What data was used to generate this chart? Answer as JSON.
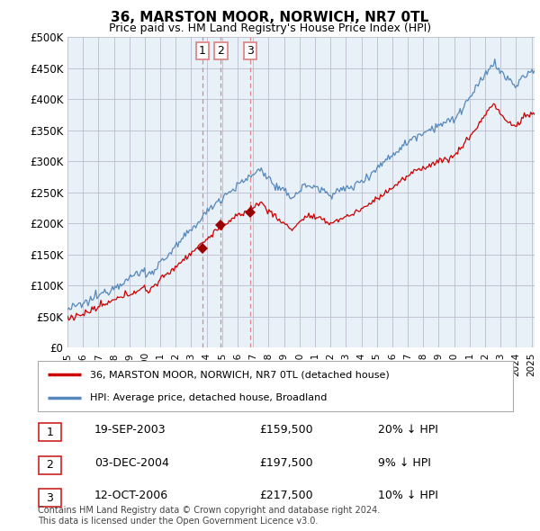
{
  "title": "36, MARSTON MOOR, NORWICH, NR7 0TL",
  "subtitle": "Price paid vs. HM Land Registry's House Price Index (HPI)",
  "ylabel_ticks": [
    "£0",
    "£50K",
    "£100K",
    "£150K",
    "£200K",
    "£250K",
    "£300K",
    "£350K",
    "£400K",
    "£450K",
    "£500K"
  ],
  "ytick_values": [
    0,
    50000,
    100000,
    150000,
    200000,
    250000,
    300000,
    350000,
    400000,
    450000,
    500000
  ],
  "ylim": [
    0,
    500000
  ],
  "xlim_start": 1995.0,
  "xlim_end": 2025.2,
  "sale_dates": [
    2003.72,
    2004.92,
    2006.79
  ],
  "sale_prices": [
    159500,
    197500,
    217500
  ],
  "sale_labels": [
    "1",
    "2",
    "3"
  ],
  "vline_color": "#dd8888",
  "sale_marker_color": "#990000",
  "hpi_line_color": "#5588bb",
  "price_line_color": "#cc0000",
  "chart_bg_color": "#e8f0f8",
  "legend_label_price": "36, MARSTON MOOR, NORWICH, NR7 0TL (detached house)",
  "legend_label_hpi": "HPI: Average price, detached house, Broadland",
  "table_rows": [
    {
      "num": "1",
      "date": "19-SEP-2003",
      "price": "£159,500",
      "change": "20% ↓ HPI"
    },
    {
      "num": "2",
      "date": "03-DEC-2004",
      "price": "£197,500",
      "change": "9% ↓ HPI"
    },
    {
      "num": "3",
      "date": "12-OCT-2006",
      "price": "£217,500",
      "change": "10% ↓ HPI"
    }
  ],
  "footnote": "Contains HM Land Registry data © Crown copyright and database right 2024.\nThis data is licensed under the Open Government Licence v3.0.",
  "background_color": "#ffffff",
  "grid_color": "#bbbbcc",
  "xtick_years": [
    1995,
    1996,
    1997,
    1998,
    1999,
    2000,
    2001,
    2002,
    2003,
    2004,
    2005,
    2006,
    2007,
    2008,
    2009,
    2010,
    2011,
    2012,
    2013,
    2014,
    2015,
    2016,
    2017,
    2018,
    2019,
    2020,
    2021,
    2022,
    2023,
    2024,
    2025
  ]
}
